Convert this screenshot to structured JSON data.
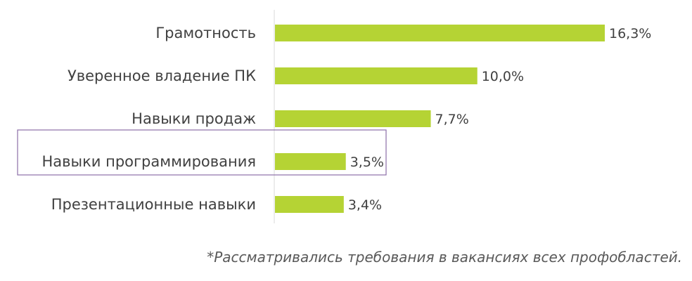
{
  "chart_data": {
    "type": "bar",
    "orientation": "horizontal",
    "categories": [
      "Грамотность",
      "Уверенное владение ПК",
      "Навыки продаж",
      "Навыки программирования",
      "Презентационные навыки"
    ],
    "values": [
      16.3,
      10.0,
      7.7,
      3.5,
      3.4
    ],
    "value_labels": [
      "16,3%",
      "10,0%",
      "7,7%",
      "3,5%",
      "3,4%"
    ],
    "xlim": [
      0,
      16.3
    ],
    "grid": false,
    "legend": "none",
    "bar_color": "#b5d334",
    "axis_color": "#d9d9d9",
    "highlight_color": "#8c6fa8",
    "highlighted_category": "Навыки программирования"
  },
  "footnote": "*Рассматривались требования в вакансиях всех профобластей."
}
